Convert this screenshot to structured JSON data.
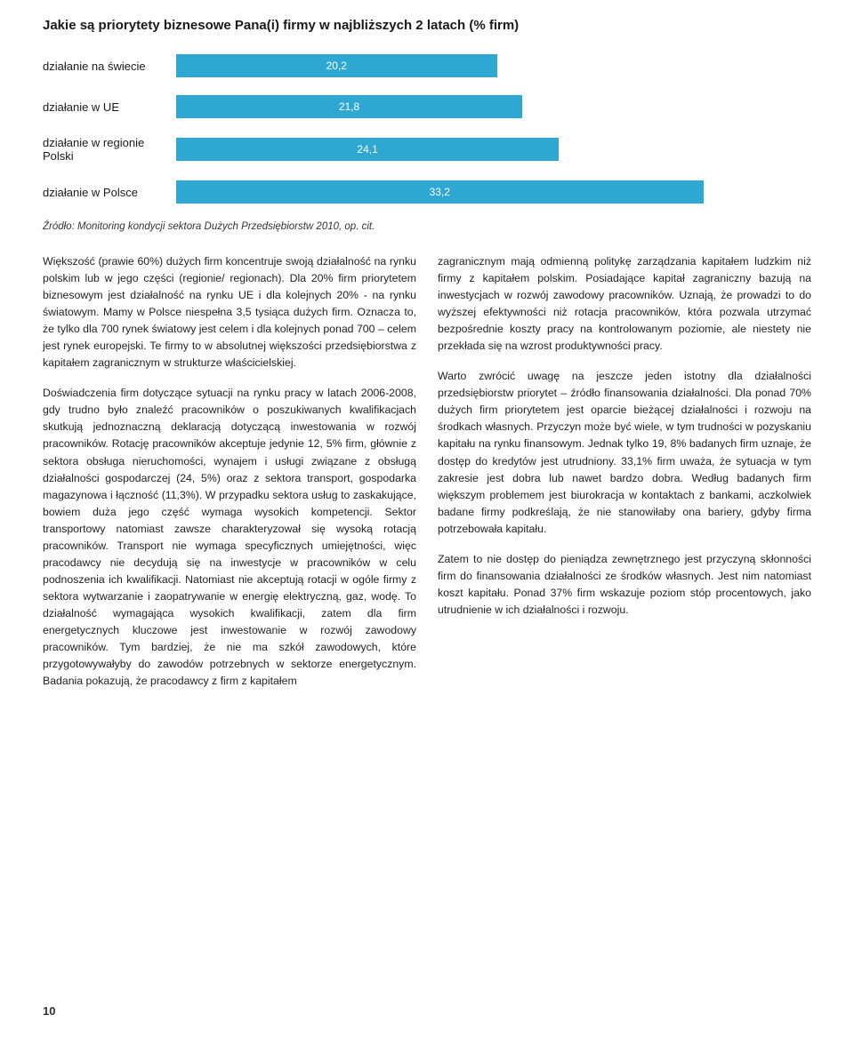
{
  "chart": {
    "title": "Jakie są priorytety biznesowe Pana(i) firmy w najbliższych 2 latach (% firm)",
    "type": "bar",
    "max": 40,
    "bar_color": "#2ea7d2",
    "rows": [
      {
        "label": "działanie na świecie",
        "value": 20.2,
        "display": "20,2"
      },
      {
        "label": "działanie w UE",
        "value": 21.8,
        "display": "21,8"
      },
      {
        "label": "działanie w regionie Polski",
        "value": 24.1,
        "display": "24,1"
      },
      {
        "label": "działanie w Polsce",
        "value": 33.2,
        "display": "33,2"
      }
    ]
  },
  "source": "Źródło: Monitoring kondycji sektora Dużych Przedsiębiorstw 2010, op. cit.",
  "col_left": {
    "p1": "Większość (prawie 60%) dużych firm koncentruje swoją działalność na rynku polskim lub w jego części (regionie/ regionach). Dla 20% firm priorytetem biznesowym jest działalność na rynku UE i dla kolejnych 20% - na rynku światowym. Mamy w Polsce niespełna 3,5 tysiąca dużych firm. Oznacza to, że tylko dla 700 rynek światowy jest celem i dla kolejnych ponad 700 – celem jest rynek europejski. Te firmy to w absolutnej większości przedsiębiorstwa z kapitałem zagranicznym w strukturze właścicielskiej.",
    "p2": "Doświadczenia firm dotyczące sytuacji na rynku pracy w latach 2006-2008, gdy trudno było znaleźć pracowników o poszukiwanych kwalifikacjach skutkują jednoznaczną deklaracją dotyczącą inwestowania w rozwój pracowników. Rotację pracowników akceptuje jedynie 12, 5% firm, głównie z sektora obsługa nieruchomości, wynajem i usługi związane z obsługą działalności gospodarczej (24, 5%) oraz z sektora transport, gospodarka magazynowa i łączność (11,3%). W przypadku sektora usług to zaskakujące, bowiem duża jego część wymaga wysokich kompetencji. Sektor transportowy natomiast zawsze charakteryzował się wysoką rotacją pracowników. Transport nie wymaga specyficznych umiejętności, więc pracodawcy nie decydują się na inwestycje w pracowników w celu podnoszenia ich kwalifikacji. Natomiast nie akceptują rotacji w ogóle firmy z sektora wytwarzanie i zaopatrywanie w energię elektryczną, gaz, wodę. To działalność wymagająca wysokich kwalifikacji, zatem dla firm energetycznych kluczowe jest inwestowanie w rozwój zawodowy pracowników. Tym bardziej, że nie ma szkół zawodowych, które przygotowywałyby do zawodów potrzebnych w sektorze energetycznym. Badania pokazują, że pracodawcy z firm z kapitałem"
  },
  "col_right": {
    "p1": "zagranicznym mają odmienną politykę zarządzania kapitałem ludzkim niż firmy z kapitałem polskim. Posiadające kapitał zagraniczny bazują na inwestycjach w rozwój zawodowy pracowników. Uznają, że prowadzi to do wyższej efektywności niż rotacja pracowników, która pozwala utrzymać bezpośrednie koszty pracy na kontrolowanym poziomie, ale niestety nie przekłada się na wzrost produktywności pracy.",
    "p2": "Warto zwrócić uwagę na jeszcze jeden istotny dla działalności przedsiębiorstw priorytet – źródło finansowania działalności. Dla ponad 70% dużych firm priorytetem jest oparcie bieżącej działalności i rozwoju na środkach własnych. Przyczyn może być wiele, w tym trudności w pozyskaniu kapitału na rynku finansowym. Jednak tylko 19, 8% badanych firm uznaje, że dostęp do kredytów jest utrudniony. 33,1% firm uważa, że sytuacja w tym zakresie jest dobra lub nawet bardzo dobra. Według badanych firm większym problemem jest biurokracja w kontaktach z bankami, aczkolwiek badane firmy podkreślają, że nie stanowiłaby ona bariery, gdyby firma potrzebowała kapitału.",
    "p3": "Zatem to nie dostęp do pieniądza zewnętrznego jest przyczyną skłonności firm do finansowania działalności ze środków własnych. Jest nim natomiast koszt kapitału. Ponad 37% firm wskazuje poziom stóp procentowych, jako utrudnienie w ich działalności i rozwoju."
  },
  "page_number": "10"
}
